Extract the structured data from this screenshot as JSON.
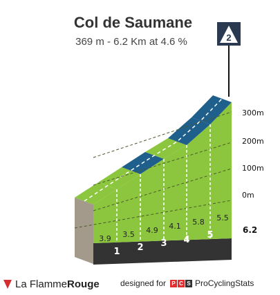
{
  "header": {
    "title": "Col de Saumane",
    "subtitle": "369 m - 6.2 Km at 4.6 %",
    "category": "2"
  },
  "chart_data": {
    "type": "area",
    "title": "Col de Saumane",
    "km_markers": [
      "1",
      "2",
      "3",
      "4",
      "5"
    ],
    "end_km_label": "6.2",
    "segment_gradients": [
      "3.9",
      "3.5",
      "4.9",
      "4.1",
      "5.8",
      "5.5"
    ],
    "altitude_labels": [
      "300m",
      "200m",
      "100m",
      "0m"
    ],
    "altitude_values": [
      300,
      200,
      100,
      0
    ],
    "category_label": "2",
    "colors": {
      "low_gradient": "#8cc63f",
      "high_gradient": "#1f5f8b",
      "side_face": "#a39a8c",
      "base": "#333333"
    }
  },
  "footer": {
    "brand_prefix": "La Flamme",
    "brand_suffix": "Rouge",
    "designed_for": "designed for",
    "pcs_letters": [
      "P",
      "C",
      "S"
    ],
    "pcs_name": "ProCyclingStats"
  }
}
